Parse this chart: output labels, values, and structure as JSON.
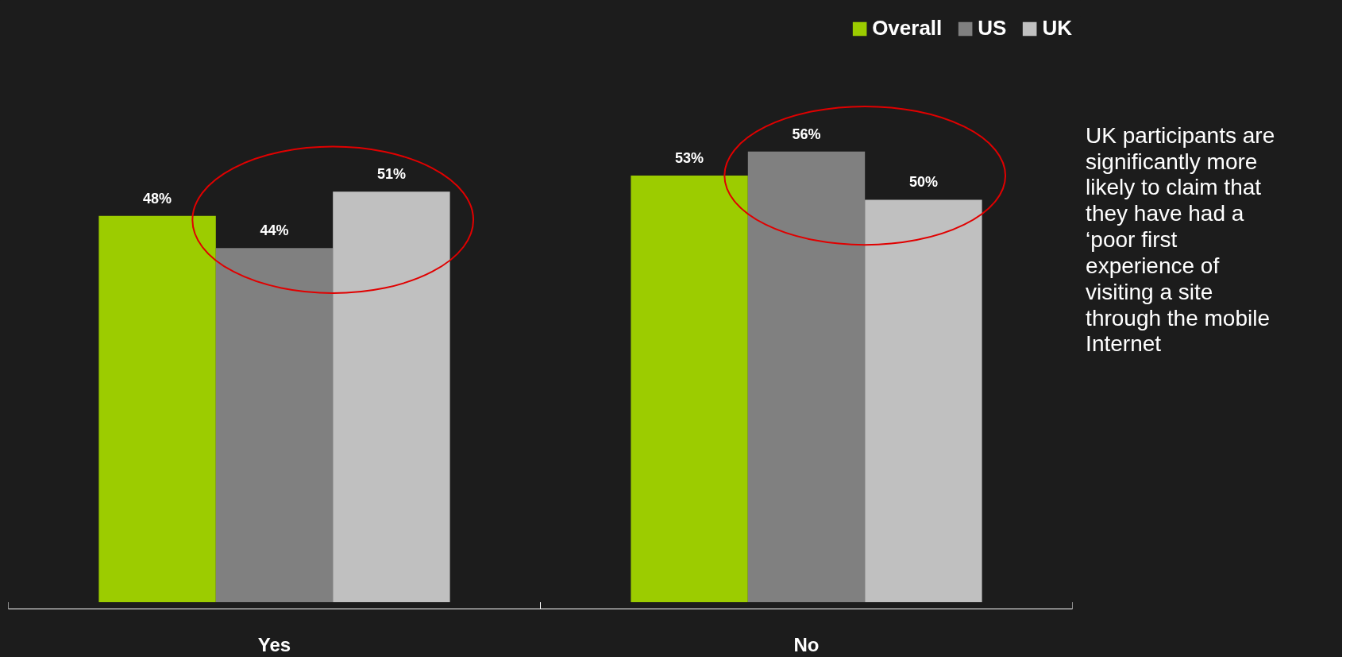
{
  "chart_data": {
    "type": "bar",
    "categories": [
      "Yes",
      "No"
    ],
    "series": [
      {
        "name": "Overall",
        "color": "#9ccc00",
        "values": [
          48,
          53
        ],
        "value_labels": [
          "48%",
          "53%"
        ]
      },
      {
        "name": "US",
        "color": "#808080",
        "values": [
          44,
          56
        ],
        "value_labels": [
          "44%",
          "56%"
        ]
      },
      {
        "name": "UK",
        "color": "#c0c0c0",
        "values": [
          51,
          50
        ],
        "value_labels": [
          "51%",
          "50%"
        ]
      }
    ],
    "annotations": [
      "UK participants are significantly more likely to claim that they have had a ‘poor first experience of visiting a site through the mobile Internet"
    ],
    "legend": "top right",
    "grid": false
  }
}
